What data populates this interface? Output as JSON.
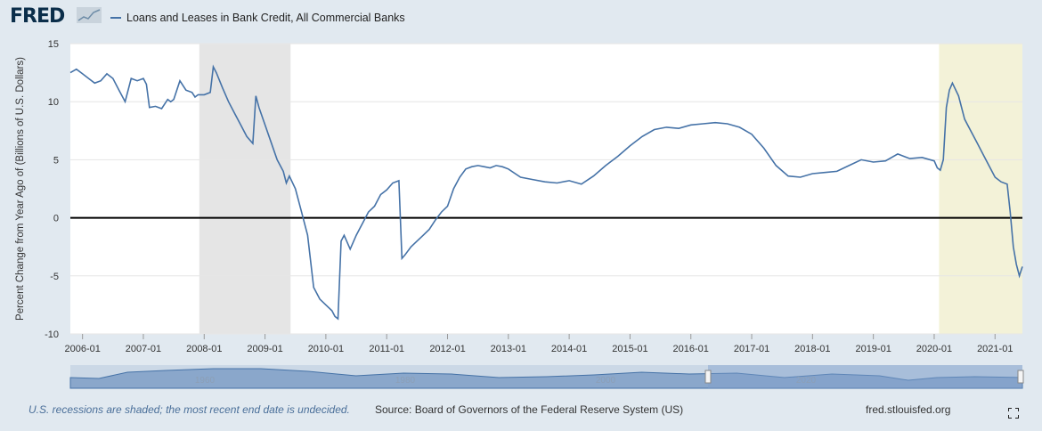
{
  "header": {
    "logo_text": "FRED",
    "legend_label": "Loans and Leases in Bank Credit, All Commercial Banks"
  },
  "footer": {
    "recession_note": "U.S. recessions are shaded; the most recent end date is undecided.",
    "source": "Source: Board of Governors of the Federal Reserve System (US)",
    "site": "fred.stlouisfed.org"
  },
  "colors": {
    "series": "#4572a7",
    "recession": "#e5e5e5",
    "recent_recession": "#f3f2d8",
    "background": "#e1e9f0"
  },
  "navigator": {
    "labels": [
      "1960",
      "1980",
      "2000",
      "2020"
    ]
  },
  "chart_data": {
    "type": "line",
    "title": "",
    "xlabel": "",
    "ylabel": "Percent Change from Year Ago of (Billions of U.S. Dollars)",
    "ylim": [
      -10,
      15
    ],
    "yticks": [
      "15",
      "10",
      "5",
      "0",
      "-5",
      "-10"
    ],
    "xlim": [
      2005.8,
      2021.45
    ],
    "xticks": [
      "2006-01",
      "2007-01",
      "2008-01",
      "2009-01",
      "2010-01",
      "2011-01",
      "2012-01",
      "2013-01",
      "2014-01",
      "2015-01",
      "2016-01",
      "2017-01",
      "2018-01",
      "2019-01",
      "2020-01",
      "2021-01"
    ],
    "recessions": [
      {
        "start": 2007.92,
        "end": 2009.42
      },
      {
        "start": 2020.08,
        "end": 2021.45
      }
    ],
    "grid": true,
    "series": [
      {
        "name": "Loans and Leases in Bank Credit, All Commercial Banks",
        "x": [
          2005.8,
          2005.9,
          2006.0,
          2006.1,
          2006.2,
          2006.3,
          2006.4,
          2006.5,
          2006.6,
          2006.7,
          2006.8,
          2006.9,
          2007.0,
          2007.05,
          2007.1,
          2007.2,
          2007.3,
          2007.4,
          2007.45,
          2007.5,
          2007.6,
          2007.7,
          2007.8,
          2007.85,
          2007.9,
          2008.0,
          2008.1,
          2008.15,
          2008.2,
          2008.3,
          2008.4,
          2008.5,
          2008.6,
          2008.7,
          2008.8,
          2008.85,
          2008.9,
          2009.0,
          2009.1,
          2009.2,
          2009.3,
          2009.35,
          2009.4,
          2009.5,
          2009.6,
          2009.7,
          2009.8,
          2009.9,
          2010.0,
          2010.1,
          2010.15,
          2010.2,
          2010.25,
          2010.3,
          2010.4,
          2010.5,
          2010.6,
          2010.7,
          2010.8,
          2010.9,
          2011.0,
          2011.1,
          2011.2,
          2011.25,
          2011.3,
          2011.4,
          2011.5,
          2011.6,
          2011.7,
          2011.8,
          2011.9,
          2012.0,
          2012.1,
          2012.2,
          2012.3,
          2012.4,
          2012.5,
          2012.6,
          2012.7,
          2012.8,
          2012.9,
          2013.0,
          2013.2,
          2013.4,
          2013.6,
          2013.8,
          2014.0,
          2014.2,
          2014.4,
          2014.6,
          2014.8,
          2015.0,
          2015.2,
          2015.4,
          2015.6,
          2015.8,
          2016.0,
          2016.2,
          2016.4,
          2016.6,
          2016.8,
          2017.0,
          2017.2,
          2017.4,
          2017.6,
          2017.8,
          2018.0,
          2018.2,
          2018.4,
          2018.6,
          2018.8,
          2019.0,
          2019.2,
          2019.4,
          2019.6,
          2019.8,
          2020.0,
          2020.05,
          2020.1,
          2020.15,
          2020.2,
          2020.25,
          2020.3,
          2020.4,
          2020.5,
          2020.6,
          2020.7,
          2020.8,
          2020.9,
          2021.0,
          2021.1,
          2021.2,
          2021.25,
          2021.3,
          2021.35,
          2021.4,
          2021.45
        ],
        "values": [
          12.5,
          12.8,
          12.4,
          12.0,
          11.6,
          11.8,
          12.4,
          12.0,
          11.0,
          10.0,
          12.0,
          11.8,
          12.0,
          11.5,
          9.5,
          9.6,
          9.4,
          10.2,
          10.0,
          10.2,
          11.8,
          11.0,
          10.8,
          10.4,
          10.6,
          10.6,
          10.8,
          13.0,
          12.5,
          11.2,
          10.0,
          9.0,
          8.0,
          7.0,
          6.4,
          10.5,
          9.5,
          8.0,
          6.5,
          5.0,
          4.0,
          3.0,
          3.6,
          2.5,
          0.5,
          -1.5,
          -6.0,
          -7.0,
          -7.5,
          -8.0,
          -8.5,
          -8.7,
          -2.0,
          -1.5,
          -2.7,
          -1.5,
          -0.5,
          0.5,
          1.0,
          2.0,
          2.4,
          3.0,
          3.2,
          -3.5,
          -3.2,
          -2.5,
          -2.0,
          -1.5,
          -1.0,
          -0.2,
          0.5,
          1.0,
          2.5,
          3.5,
          4.2,
          4.4,
          4.5,
          4.4,
          4.3,
          4.5,
          4.4,
          4.2,
          3.5,
          3.3,
          3.1,
          3.0,
          3.2,
          2.9,
          3.6,
          4.5,
          5.3,
          6.2,
          7.0,
          7.6,
          7.8,
          7.7,
          8.0,
          8.1,
          8.2,
          8.1,
          7.8,
          7.2,
          6.0,
          4.5,
          3.6,
          3.5,
          3.8,
          3.9,
          4.0,
          4.5,
          5.0,
          4.8,
          4.9,
          5.5,
          5.1,
          5.2,
          4.9,
          4.3,
          4.1,
          5.0,
          9.5,
          11.0,
          11.6,
          10.5,
          8.5,
          7.5,
          6.5,
          5.5,
          4.5,
          3.5,
          3.1,
          2.9,
          0.5,
          -2.5,
          -4.0,
          -5.0,
          -4.2
        ]
      }
    ]
  }
}
